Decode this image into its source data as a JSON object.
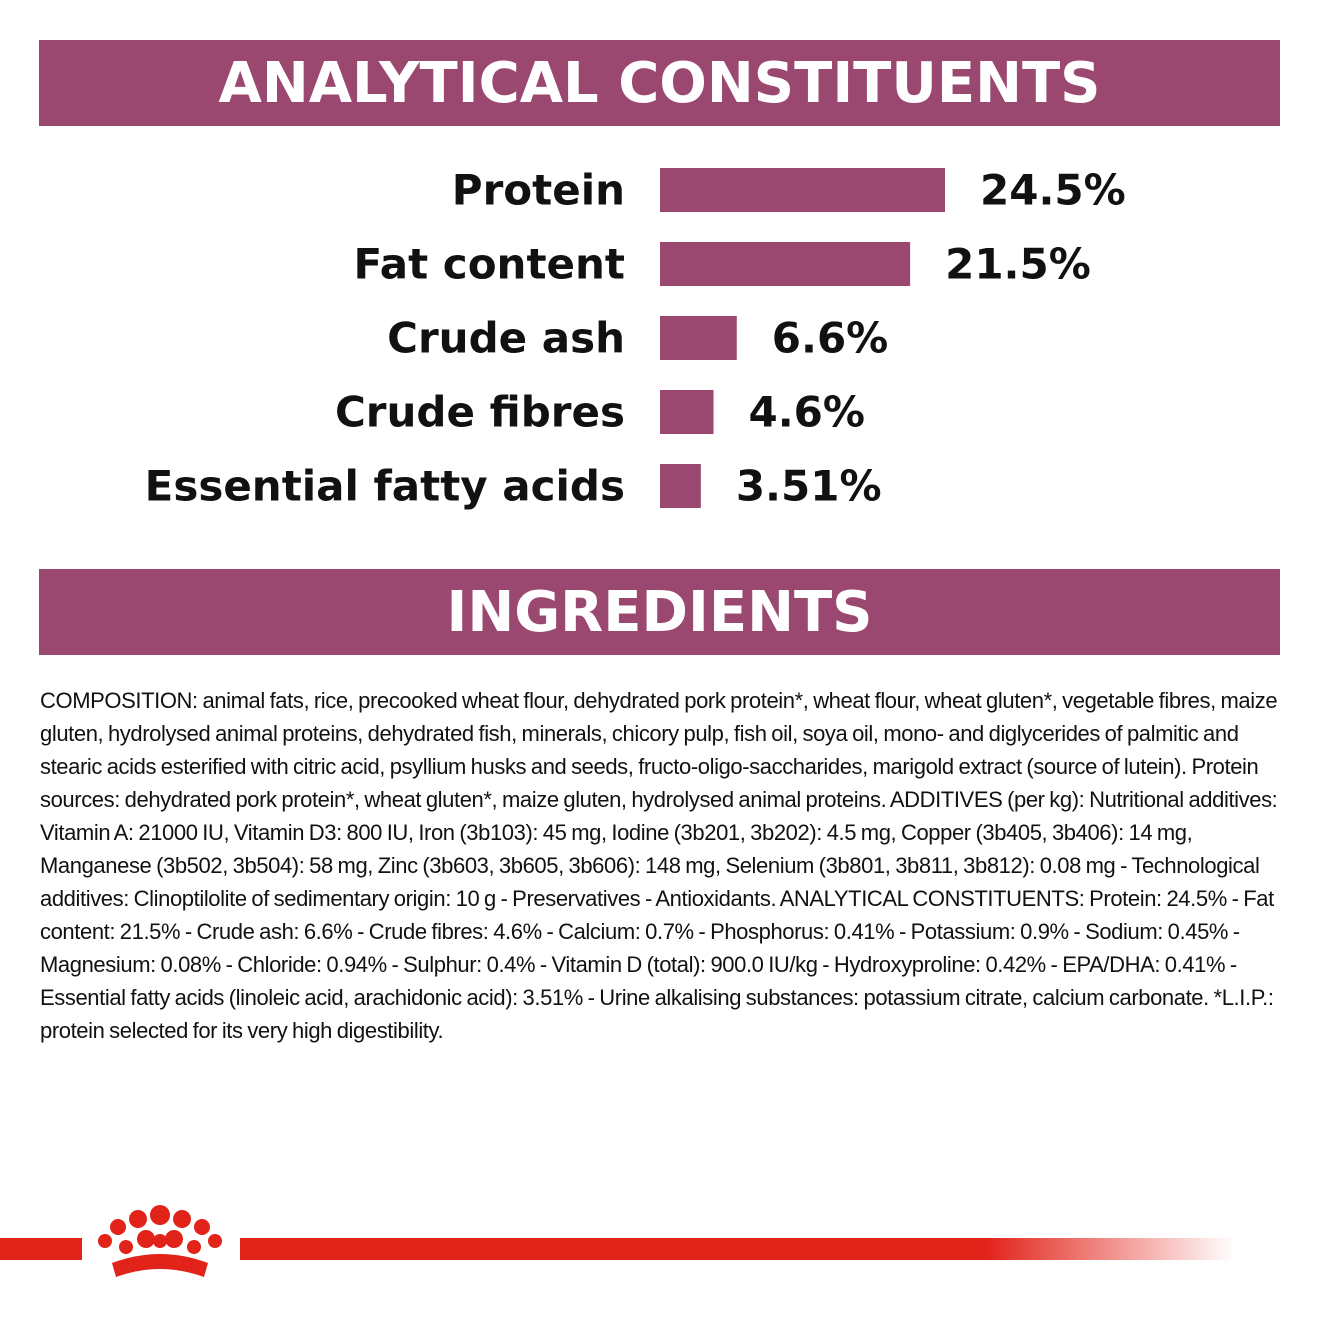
{
  "chart_data": {
    "type": "bar",
    "title": "ANALYTICAL CONSTITUENTS",
    "categories": [
      "Protein",
      "Fat content",
      "Crude ash",
      "Crude fibres",
      "Essential fatty acids"
    ],
    "values": [
      24.5,
      21.5,
      6.6,
      4.6,
      3.51
    ],
    "value_labels": [
      "24.5%",
      "21.5%",
      "6.6%",
      "4.6%",
      "3.51%"
    ],
    "color": "#9b4870"
  },
  "ingredients": {
    "title": "INGREDIENTS",
    "text": "COMPOSITION: animal fats, rice, precooked wheat flour, dehydrated pork protein*, wheat flour, wheat gluten*, vegetable fibres, maize gluten, hydrolysed animal proteins, dehydrated fish, minerals, chicory pulp, fish oil, soya oil, mono- and diglycerides of palmitic and stearic acids esterified with citric acid, psyllium husks and seeds, fructo-oligo-saccharides, marigold extract (source of lutein). Protein sources: dehydrated pork protein*, wheat gluten*, maize gluten, hydrolysed animal proteins. ADDITIVES (per kg): Nutritional additives: Vitamin A: 21000 IU, Vitamin D3: 800 IU, Iron (3b103): 45 mg, Iodine (3b201, 3b202): 4.5 mg, Copper (3b405, 3b406): 14 mg, Manganese (3b502, 3b504): 58 mg, Zinc (3b603, 3b605, 3b606): 148 mg, Selenium (3b801, 3b811, 3b812): 0.08 mg - Technological additives: Clinoptilolite of sedimentary origin: 10 g - Preservatives - Antioxidants. ANALYTICAL CONSTITUENTS: Protein: 24.5% - Fat content: 21.5% - Crude ash: 6.6% - Crude fibres: 4.6% - Calcium: 0.7% - Phosphorus: 0.41% - Potassium: 0.9% - Sodium: 0.45% - Magnesium: 0.08% - Chloride: 0.94% - Sulphur: 0.4% - Vitamin D (total): 900.0 IU/kg - Hydroxyproline: 0.42% - EPA/DHA: 0.41% - Essential fatty acids (linoleic acid, arachidonic acid): 3.51% - Urine alkalising substances: potassium citrate, calcium carbonate. *L.I.P.: protein selected for its very high digestibility."
  }
}
